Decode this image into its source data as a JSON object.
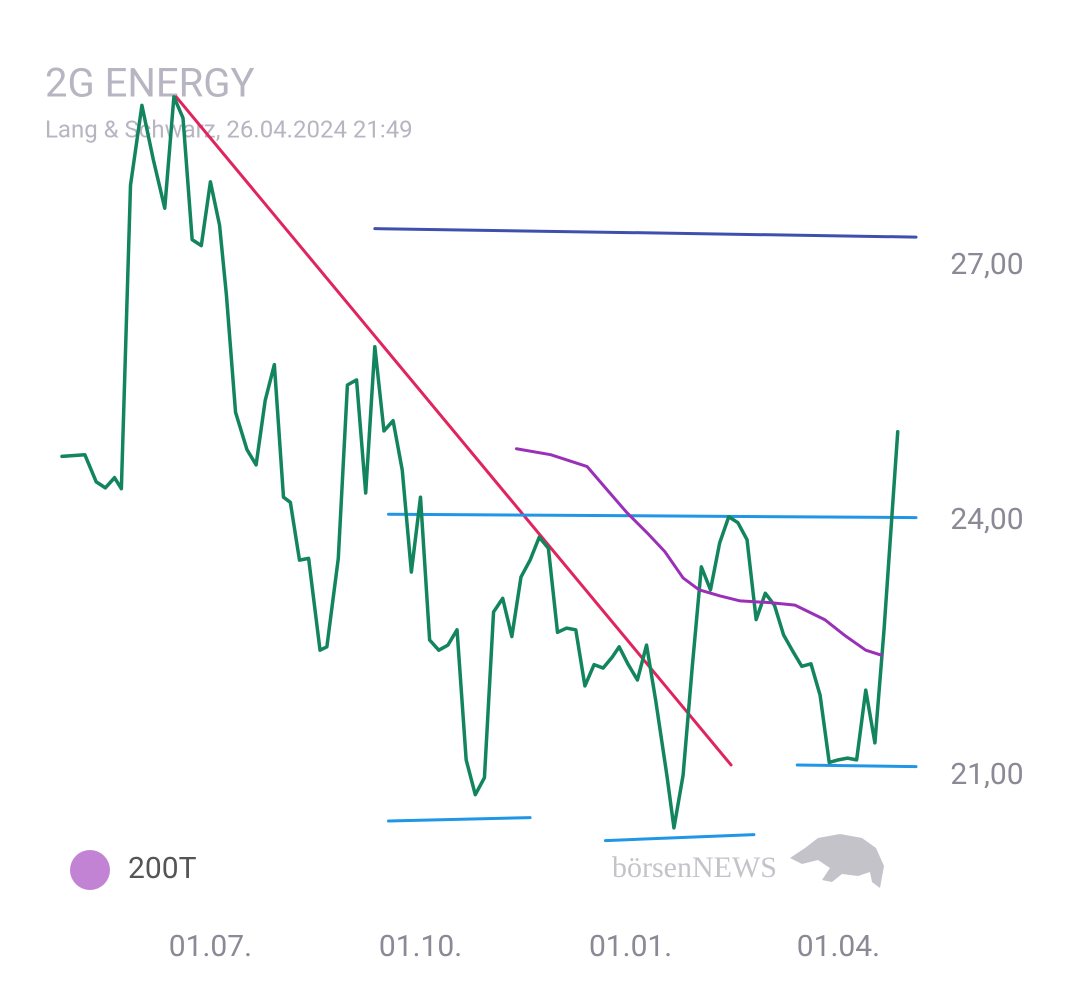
{
  "chart_data": {
    "type": "line",
    "title": "2G ENERGY",
    "subtitle": "Lang & Schwarz, 26.04.2024 21:49",
    "watermark": "börsenNEWS",
    "xlim": [
      -65,
      309
    ],
    "ylim": [
      20,
      29.5
    ],
    "xticks": [
      {
        "value": 0,
        "label": "01.07."
      },
      {
        "value": 92,
        "label": "01.10."
      },
      {
        "value": 184,
        "label": "01.01."
      },
      {
        "value": 275,
        "label": "01.04."
      }
    ],
    "yticks": [
      {
        "value": 21,
        "label": "21,00"
      },
      {
        "value": 24,
        "label": "24,00"
      },
      {
        "value": 27,
        "label": "27,00"
      }
    ],
    "series": [
      {
        "color": "#13855e",
        "x": [
          -65,
          -55,
          -50,
          -46,
          -42,
          -39,
          -35,
          -30,
          -25,
          -20,
          -16,
          -12,
          -8,
          -4,
          0,
          4,
          7,
          11,
          16,
          20,
          24,
          28,
          32,
          35,
          39,
          43,
          48,
          51,
          56,
          60,
          64,
          68,
          72,
          76,
          80,
          84,
          88,
          92,
          96,
          100,
          104,
          108,
          112,
          116,
          120,
          124,
          128,
          132,
          136,
          140,
          144,
          148,
          152,
          156,
          160,
          164,
          168,
          172,
          176,
          179,
          183,
          187,
          191,
          195,
          200,
          203,
          207,
          211,
          215,
          219,
          223,
          227,
          231,
          235,
          239,
          243,
          247,
          251,
          255,
          259,
          263,
          267,
          271,
          275,
          279,
          283,
          287,
          291,
          295,
          301
        ],
        "values": [
          24.76,
          24.78,
          24.46,
          24.39,
          24.51,
          24.38,
          27.95,
          28.89,
          28.25,
          27.68,
          28.99,
          28.74,
          27.31,
          27.24,
          27.99,
          27.48,
          26.66,
          25.28,
          24.84,
          24.66,
          25.42,
          25.84,
          24.28,
          24.22,
          23.54,
          23.56,
          22.48,
          22.52,
          23.56,
          25.6,
          25.66,
          24.33,
          26.05,
          25.06,
          25.18,
          24.6,
          23.4,
          24.28,
          22.6,
          22.48,
          22.54,
          22.72,
          21.19,
          20.78,
          20.98,
          22.93,
          23.09,
          22.64,
          23.34,
          23.54,
          23.81,
          23.68,
          22.69,
          22.74,
          22.72,
          22.06,
          22.31,
          22.27,
          22.4,
          22.52,
          22.31,
          22.13,
          22.54,
          21.89,
          20.99,
          20.39,
          21.01,
          22.28,
          23.46,
          23.19,
          23.74,
          24.05,
          23.98,
          23.78,
          22.84,
          23.15,
          23.01,
          22.66,
          22.47,
          22.29,
          22.32,
          21.95,
          21.16,
          21.19,
          21.21,
          21.19,
          22.01,
          21.39,
          22.72,
          25.05
        ]
      },
      {
        "name": "200T",
        "color": "#9b30b8",
        "x": [
          134,
          149,
          165,
          173,
          182,
          192,
          199,
          207,
          214,
          223,
          232,
          245,
          256,
          269,
          278,
          287,
          294
        ],
        "values": [
          24.85,
          24.78,
          24.64,
          24.39,
          24.11,
          23.84,
          23.64,
          23.33,
          23.19,
          23.12,
          23.06,
          23.04,
          23.01,
          22.84,
          22.65,
          22.48,
          22.42
        ]
      }
    ],
    "trendlines": [
      {
        "color": "#e0245e",
        "x": [
          -15,
          228
        ],
        "values": [
          28.99,
          21.13
        ]
      },
      {
        "color": "#3f4fae",
        "x": [
          72,
          309
        ],
        "values": [
          27.44,
          27.34
        ]
      },
      {
        "color": "#2196e6",
        "x": [
          78,
          309
        ],
        "values": [
          24.08,
          24.04
        ]
      },
      {
        "color": "#2196e6",
        "x": [
          78,
          140
        ],
        "values": [
          20.47,
          20.51
        ]
      },
      {
        "color": "#2196e6",
        "x": [
          173,
          238
        ],
        "values": [
          20.24,
          20.31
        ]
      },
      {
        "color": "#2196e6",
        "x": [
          257,
          309
        ],
        "values": [
          21.13,
          21.11
        ]
      }
    ]
  }
}
